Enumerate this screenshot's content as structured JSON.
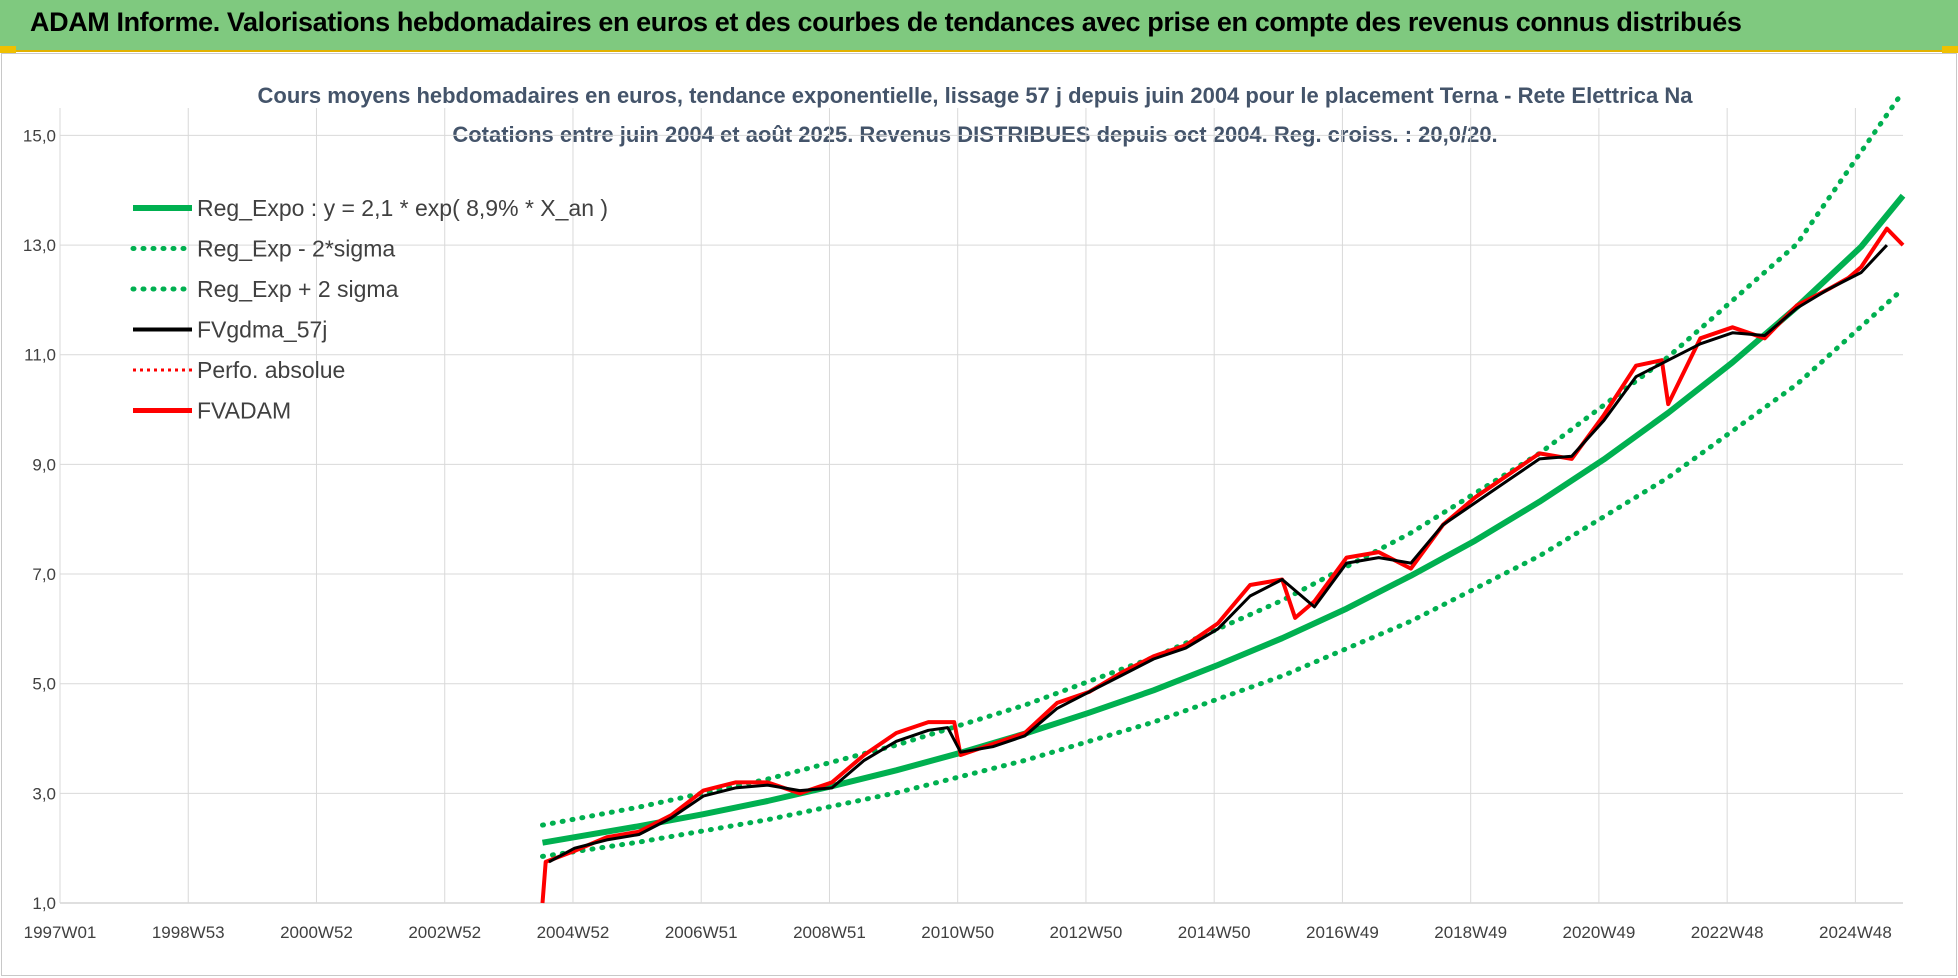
{
  "header": {
    "banner_title": "ADAM Informe. Valorisations hebdomadaires en euros et des courbes de tendances avec prise en compte des revenus connus distribués"
  },
  "colors": {
    "banner": "#7fc97f",
    "trend": "#00b050",
    "bands": "#00b050",
    "smooth": "#000000",
    "adam": "#ff0000",
    "perfo": "#ff0000",
    "grid": "#d9d9d9"
  },
  "chart_data": {
    "type": "line",
    "title": "Cours moyens hebdomadaires en euros, tendance exponentielle, lissage 57 j depuis juin 2004 pour le placement Terna - Rete Elettrica Na",
    "subtitle": "Cotations entre juin 2004 et août 2025. Revenus DISTRIBUES depuis oct 2004. Reg. croiss. : 20,0/20.",
    "xlabel": "",
    "ylabel": "",
    "x_tick_labels": [
      "1997W01",
      "1998W53",
      "2000W52",
      "2002W52",
      "2004W52",
      "2006W51",
      "2008W51",
      "2010W50",
      "2012W50",
      "2014W50",
      "2016W49",
      "2018W49",
      "2020W49",
      "2022W48",
      "2024W48"
    ],
    "x_range": [
      1997.0,
      2025.65
    ],
    "y_ticks": [
      "1,0",
      "3,0",
      "5,0",
      "7,0",
      "9,0",
      "11,0",
      "13,0",
      "15,0"
    ],
    "ylim": [
      1,
      15.5
    ],
    "grid": true,
    "legend_position": "top-left",
    "series": [
      {
        "name": "Reg_Expo : y = 2,1 * exp( 8,9% *  X_an )",
        "style": "solid-thick",
        "color": "#00b050",
        "x": [
          2004.5,
          2005,
          2006,
          2007,
          2008,
          2009,
          2010,
          2011,
          2012,
          2013,
          2014,
          2015,
          2016,
          2017,
          2018,
          2019,
          2020,
          2021,
          2022,
          2023,
          2024,
          2025,
          2025.65
        ],
        "y": [
          2.1,
          2.2,
          2.4,
          2.62,
          2.86,
          3.13,
          3.42,
          3.74,
          4.09,
          4.47,
          4.88,
          5.34,
          5.83,
          6.37,
          6.97,
          7.61,
          8.32,
          9.09,
          9.94,
          10.86,
          11.87,
          12.97,
          13.9
        ]
      },
      {
        "name": "Reg_Exp - 2*sigma",
        "style": "dotted",
        "color": "#00b050",
        "x": [
          2004.5,
          2006,
          2008,
          2010,
          2012,
          2014,
          2016,
          2018,
          2020,
          2022,
          2024,
          2025.65
        ],
        "y": [
          1.85,
          2.11,
          2.52,
          3.01,
          3.6,
          4.3,
          5.14,
          6.14,
          7.33,
          8.76,
          10.46,
          12.2
        ]
      },
      {
        "name": "Reg_Exp + 2 sigma",
        "style": "dotted",
        "color": "#00b050",
        "x": [
          2004.5,
          2006,
          2008,
          2010,
          2012,
          2014,
          2016,
          2018,
          2020,
          2022,
          2024,
          2025.65
        ],
        "y": [
          2.42,
          2.75,
          3.26,
          3.88,
          4.61,
          5.48,
          6.52,
          7.75,
          9.2,
          10.96,
          13.02,
          15.8
        ]
      },
      {
        "name": "FVgdma_57j",
        "style": "solid",
        "color": "#000000",
        "x": [
          2004.6,
          2005,
          2005.5,
          2006,
          2006.5,
          2007,
          2007.5,
          2008,
          2008.5,
          2009,
          2009.5,
          2010,
          2010.5,
          2010.8,
          2011,
          2011.5,
          2012,
          2012.5,
          2013,
          2013.5,
          2014,
          2014.5,
          2015,
          2015.5,
          2016,
          2016.5,
          2017,
          2017.5,
          2018,
          2018.5,
          2019,
          2019.5,
          2020,
          2020.5,
          2021,
          2021.5,
          2022,
          2022.5,
          2023,
          2023.5,
          2024,
          2024.5,
          2025,
          2025.4
        ],
        "y": [
          1.75,
          2.0,
          2.15,
          2.25,
          2.55,
          2.95,
          3.1,
          3.15,
          3.05,
          3.1,
          3.6,
          3.95,
          4.15,
          4.2,
          3.75,
          3.85,
          4.05,
          4.55,
          4.85,
          5.15,
          5.45,
          5.65,
          6.0,
          6.6,
          6.9,
          6.4,
          7.2,
          7.3,
          7.2,
          7.9,
          8.3,
          8.7,
          9.1,
          9.15,
          9.8,
          10.6,
          10.9,
          11.2,
          11.4,
          11.35,
          11.85,
          12.2,
          12.5,
          13.0
        ]
      },
      {
        "name": "Perfo. absolue",
        "style": "dotted",
        "color": "#ff0000",
        "x": [
          2004.5,
          2004.55,
          2005,
          2005.5,
          2006,
          2006.5,
          2007,
          2007.5,
          2008,
          2008.5,
          2009,
          2009.5,
          2010,
          2010.5,
          2010.9,
          2011,
          2011.5,
          2012,
          2012.5,
          2013,
          2013.5,
          2014,
          2014.5,
          2015,
          2015.5,
          2016,
          2016.2,
          2016.5,
          2017,
          2017.5,
          2018,
          2018.5,
          2019,
          2019.5,
          2020,
          2020.5,
          2021,
          2021.5,
          2021.9,
          2022,
          2022.5,
          2023,
          2023.5,
          2024,
          2024.5,
          2024.8,
          2025,
          2025.4,
          2025.65
        ],
        "y": [
          1.0,
          1.75,
          1.95,
          2.2,
          2.3,
          2.6,
          3.05,
          3.2,
          3.2,
          3.0,
          3.2,
          3.7,
          4.1,
          4.3,
          4.3,
          3.7,
          3.9,
          4.1,
          4.65,
          4.85,
          5.2,
          5.5,
          5.7,
          6.1,
          6.8,
          6.9,
          6.2,
          6.5,
          7.3,
          7.4,
          7.1,
          7.9,
          8.4,
          8.8,
          9.2,
          9.1,
          9.9,
          10.8,
          10.9,
          10.1,
          11.3,
          11.5,
          11.3,
          11.9,
          12.2,
          12.4,
          12.6,
          13.3,
          13.0
        ]
      },
      {
        "name": "FVADAM",
        "style": "solid-thick",
        "color": "#ff0000",
        "x": [
          2004.5,
          2004.55,
          2005,
          2005.5,
          2006,
          2006.5,
          2007,
          2007.5,
          2008,
          2008.5,
          2009,
          2009.5,
          2010,
          2010.5,
          2010.9,
          2011,
          2011.5,
          2012,
          2012.5,
          2013,
          2013.5,
          2014,
          2014.5,
          2015,
          2015.5,
          2016,
          2016.2,
          2016.5,
          2017,
          2017.5,
          2018,
          2018.5,
          2019,
          2019.5,
          2020,
          2020.5,
          2021,
          2021.5,
          2021.9,
          2022,
          2022.5,
          2023,
          2023.5,
          2024,
          2024.5,
          2024.8,
          2025,
          2025.4,
          2025.65
        ],
        "y": [
          1.0,
          1.75,
          1.95,
          2.2,
          2.3,
          2.6,
          3.05,
          3.2,
          3.2,
          3.0,
          3.2,
          3.7,
          4.1,
          4.3,
          4.3,
          3.7,
          3.9,
          4.1,
          4.65,
          4.85,
          5.2,
          5.5,
          5.7,
          6.1,
          6.8,
          6.9,
          6.2,
          6.5,
          7.3,
          7.4,
          7.1,
          7.9,
          8.4,
          8.8,
          9.2,
          9.1,
          9.9,
          10.8,
          10.9,
          10.1,
          11.3,
          11.5,
          11.3,
          11.9,
          12.2,
          12.4,
          12.6,
          13.3,
          13.0
        ]
      }
    ]
  }
}
